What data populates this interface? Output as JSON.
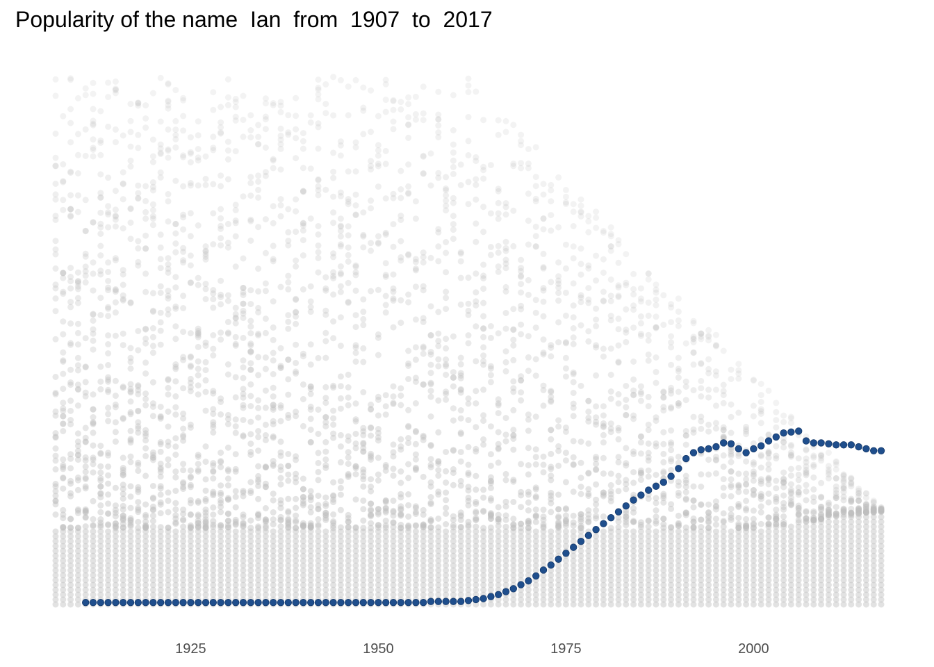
{
  "chart_data": {
    "type": "scatter",
    "title": "Popularity of the name  Ian  from  1907  to  2017",
    "xlabel": "",
    "ylabel": "",
    "xlim": [
      1907,
      2017
    ],
    "ylim": [
      0,
      0.0055
    ],
    "x_ticks": [
      1925,
      1950,
      1975,
      2000
    ],
    "x_tick_labels": [
      "1925",
      "1950",
      "1975",
      "2000"
    ],
    "grid": false,
    "y_axis_visible": false,
    "colors": {
      "background_points": "#bebebe",
      "highlight": "#1f4e8c"
    },
    "series": [
      {
        "name": "Ian",
        "color": "#1f4e8c",
        "x": [
          1911,
          1912,
          1913,
          1914,
          1915,
          1916,
          1917,
          1918,
          1919,
          1920,
          1921,
          1922,
          1923,
          1924,
          1925,
          1926,
          1927,
          1928,
          1929,
          1930,
          1931,
          1932,
          1933,
          1934,
          1935,
          1936,
          1937,
          1938,
          1939,
          1940,
          1941,
          1942,
          1943,
          1944,
          1945,
          1946,
          1947,
          1948,
          1949,
          1950,
          1951,
          1952,
          1953,
          1954,
          1955,
          1956,
          1957,
          1958,
          1959,
          1960,
          1961,
          1962,
          1963,
          1964,
          1965,
          1966,
          1967,
          1968,
          1969,
          1970,
          1971,
          1972,
          1973,
          1974,
          1975,
          1976,
          1977,
          1978,
          1979,
          1980,
          1981,
          1982,
          1983,
          1984,
          1985,
          1986,
          1987,
          1988,
          1989,
          1990,
          1991,
          1992,
          1993,
          1994,
          1995,
          1996,
          1997,
          1998,
          1999,
          2000,
          2001,
          2002,
          2003,
          2004,
          2005,
          2006,
          2007,
          2008,
          2009,
          2010,
          2011,
          2012,
          2013,
          2014,
          2015,
          2016,
          2017
        ],
        "values": [
          2e-05,
          2e-05,
          2e-05,
          2e-05,
          2e-05,
          2e-05,
          2e-05,
          2e-05,
          2e-05,
          2e-05,
          2e-05,
          2e-05,
          2e-05,
          2e-05,
          2e-05,
          2e-05,
          2e-05,
          2e-05,
          2e-05,
          2e-05,
          2e-05,
          2e-05,
          2e-05,
          2e-05,
          2e-05,
          2e-05,
          2e-05,
          2e-05,
          2e-05,
          2e-05,
          2e-05,
          2e-05,
          2e-05,
          2e-05,
          2e-05,
          2e-05,
          2e-05,
          2e-05,
          2e-05,
          2e-05,
          2e-05,
          2e-05,
          2e-05,
          2e-05,
          2e-05,
          2e-05,
          3e-05,
          3e-05,
          3e-05,
          3e-05,
          3e-05,
          4e-05,
          5e-05,
          6e-05,
          8e-05,
          0.0001,
          0.00013,
          0.00016,
          0.0002,
          0.00024,
          0.00029,
          0.00035,
          0.0004,
          0.00046,
          0.00052,
          0.00058,
          0.00064,
          0.0007,
          0.00076,
          0.00082,
          0.00088,
          0.00094,
          0.001,
          0.00106,
          0.00111,
          0.00116,
          0.0012,
          0.00124,
          0.0013,
          0.00138,
          0.00148,
          0.00154,
          0.00157,
          0.00158,
          0.0016,
          0.00164,
          0.00163,
          0.00158,
          0.00154,
          0.00158,
          0.00161,
          0.00166,
          0.0017,
          0.00174,
          0.00175,
          0.00176,
          0.00166,
          0.00164,
          0.00164,
          0.00163,
          0.00162,
          0.00162,
          0.00162,
          0.0016,
          0.00158,
          0.00156,
          0.00156
        ]
      }
    ]
  }
}
